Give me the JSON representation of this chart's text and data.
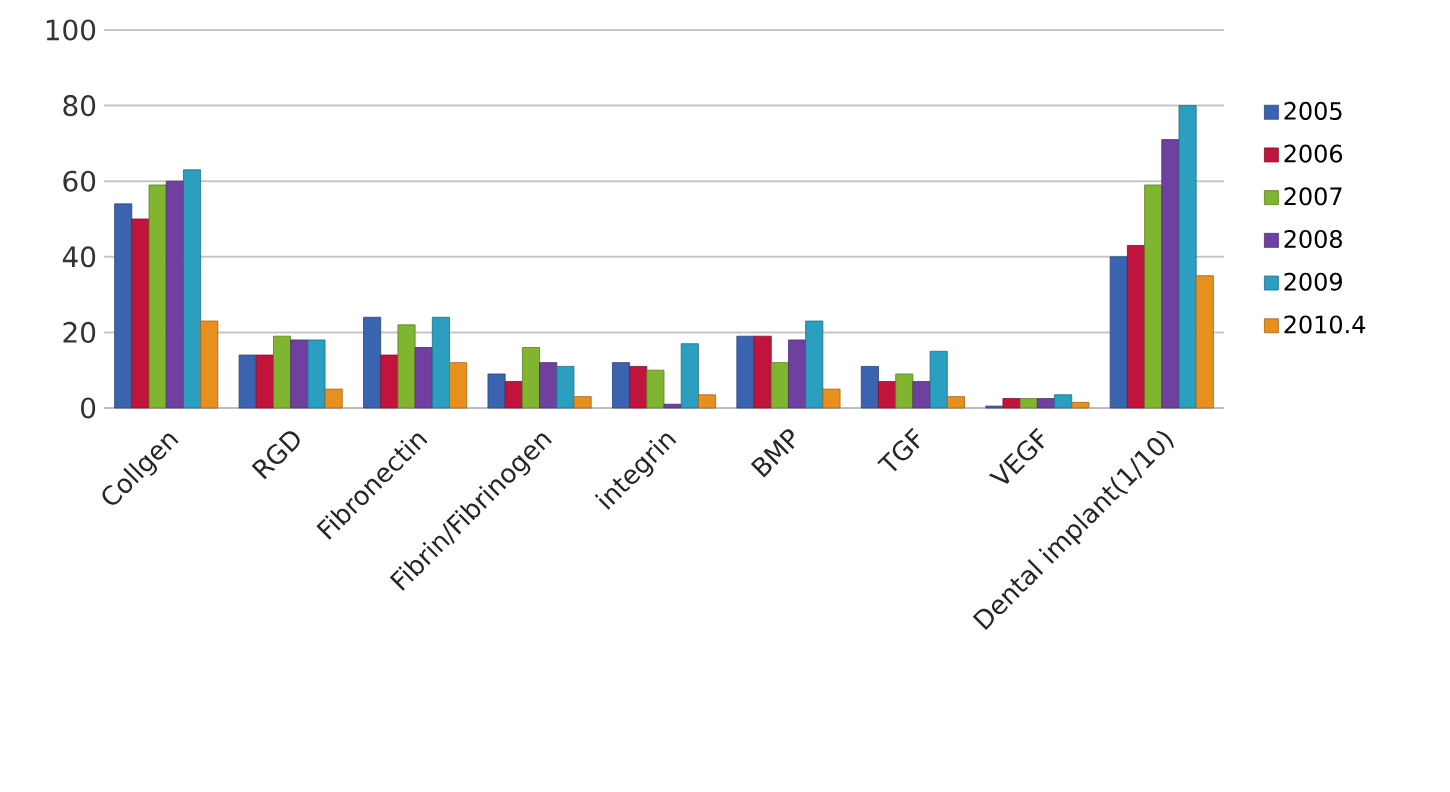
{
  "chart_data": {
    "type": "bar",
    "categories": [
      "Collgen",
      "RGD",
      "Fibronectin",
      "Fibrin/Fibrinogen",
      "integrin",
      "BMP",
      "TGF",
      "VEGF",
      "Dental implant(1/10)"
    ],
    "series": [
      {
        "name": "2005",
        "color": "#3a64b0",
        "values": [
          54,
          14,
          24,
          9,
          12,
          19,
          11,
          0.5,
          40
        ]
      },
      {
        "name": "2006",
        "color": "#c0143c",
        "values": [
          50,
          14,
          14,
          7,
          11,
          19,
          7,
          2.5,
          43
        ]
      },
      {
        "name": "2007",
        "color": "#80b530",
        "values": [
          59,
          19,
          22,
          16,
          10,
          12,
          9,
          2.5,
          59
        ]
      },
      {
        "name": "2008",
        "color": "#7040a0",
        "values": [
          60,
          18,
          16,
          12,
          1,
          18,
          7,
          2.5,
          71
        ]
      },
      {
        "name": "2009",
        "color": "#2a9fc0",
        "values": [
          63,
          18,
          24,
          11,
          17,
          23,
          15,
          3.5,
          80
        ]
      },
      {
        "name": "2010.4",
        "color": "#e8901e",
        "values": [
          23,
          5,
          12,
          3,
          3.5,
          5,
          3,
          1.5,
          35
        ]
      }
    ],
    "ylim": [
      0,
      100
    ],
    "yticks": [
      0,
      20,
      40,
      60,
      80,
      100
    ],
    "grid": "y",
    "legend": "right"
  }
}
